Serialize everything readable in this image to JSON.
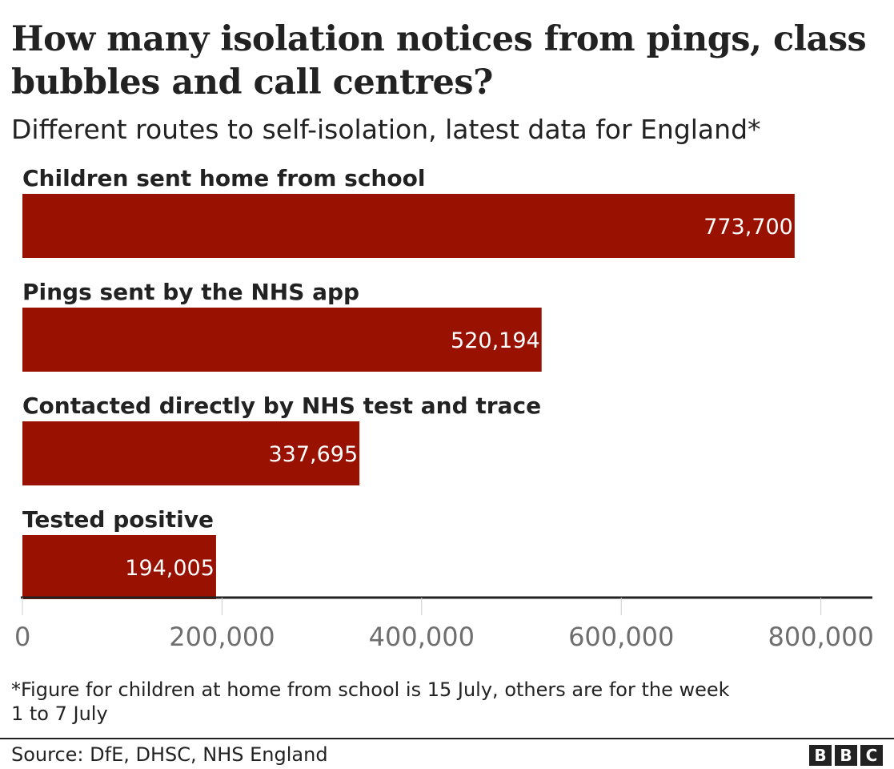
{
  "chart_data": {
    "type": "bar",
    "orientation": "horizontal",
    "title": "How many isolation notices from pings, class bubbles and call centres?",
    "subtitle": "Different routes to self-isolation, latest data for England*",
    "categories": [
      "Children sent home from school",
      "Pings sent by the NHS app",
      "Contacted directly by NHS test and trace",
      "Tested positive"
    ],
    "values": [
      773700,
      520194,
      337695,
      194005
    ],
    "value_labels": [
      "773,700",
      "520,194",
      "337,695",
      "194,005"
    ],
    "xlim": [
      0,
      850000
    ],
    "x_ticks": [
      0,
      200000,
      400000,
      600000,
      800000
    ],
    "x_tick_labels": [
      "0",
      "200,000",
      "400,000",
      "600,000",
      "800,000"
    ],
    "bar_color": "#991100",
    "grid": false,
    "legend": "none"
  },
  "footnote": "*Figure for children at home from school is 15 July, others are for the week\n 1 to 7 July",
  "source": "Source: DfE, DHSC, NHS England",
  "logo": [
    "B",
    "B",
    "C"
  ]
}
